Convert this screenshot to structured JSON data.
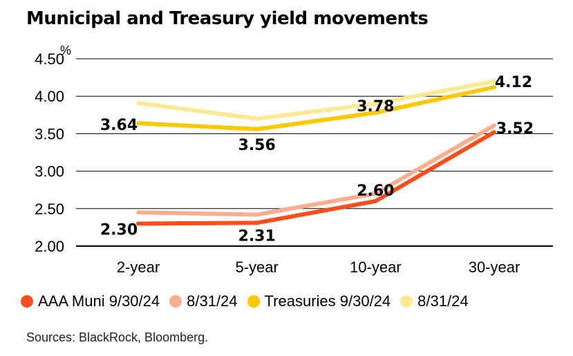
{
  "title": "Municipal and Treasury yield movements",
  "source": "Sources: BlackRock, Bloomberg.",
  "chart_data": {
    "type": "line",
    "title": "Municipal and Treasury yield movements",
    "categories": [
      "2-year",
      "5-year",
      "10-year",
      "30-year"
    ],
    "y_unit": "%",
    "ylim": [
      2.0,
      4.5
    ],
    "yticks": [
      "2.00",
      "2.50",
      "3.00",
      "3.50",
      "4.00",
      "4.50"
    ],
    "grid": true,
    "legend_position": "bottom",
    "series": [
      {
        "name": "8/31/24",
        "color": "#fde993",
        "values": [
          3.91,
          3.7,
          3.9,
          4.2
        ],
        "labels": null
      },
      {
        "name": "Treasuries 9/30/24",
        "color": "#fcc800",
        "values": [
          3.64,
          3.56,
          3.78,
          4.12
        ],
        "labels": [
          "3.64",
          "3.56",
          "3.78",
          "4.12"
        ]
      },
      {
        "name": "8/31/24",
        "color": "#f8af90",
        "values": [
          2.45,
          2.42,
          2.7,
          3.61
        ],
        "labels": null
      },
      {
        "name": "AAA Muni 9/30/24",
        "color": "#fb4e1f",
        "values": [
          2.3,
          2.31,
          2.6,
          3.52
        ],
        "labels": [
          "2.30",
          "2.31",
          "2.60",
          "3.52"
        ]
      }
    ]
  },
  "legend": [
    {
      "label": "AAA Muni 9/30/24",
      "color": "#fb4e1f"
    },
    {
      "label": "8/31/24",
      "color": "#f8af90"
    },
    {
      "label": "Treasuries 9/30/24",
      "color": "#fcc800"
    },
    {
      "label": "8/31/24",
      "color": "#fde993"
    }
  ]
}
